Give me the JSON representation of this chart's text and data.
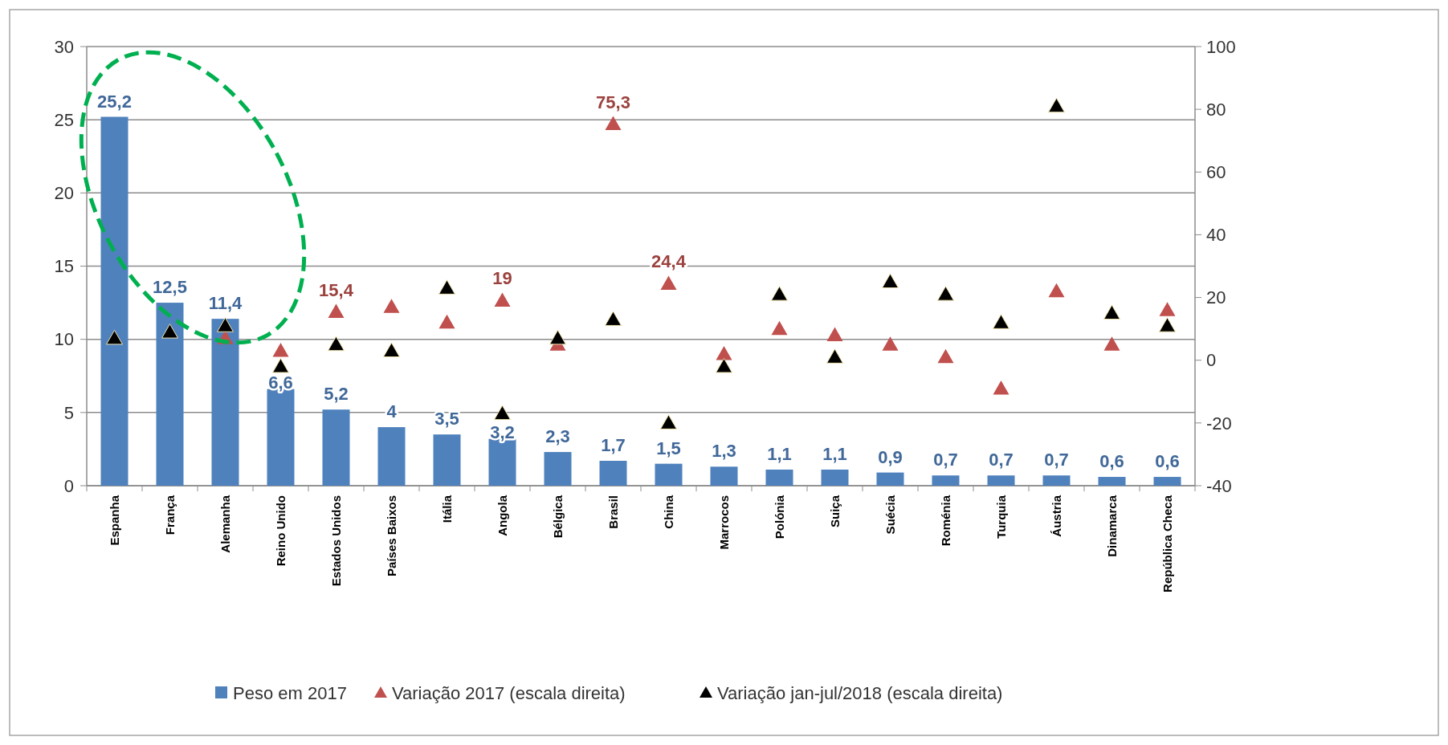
{
  "chart_data": {
    "type": "bar",
    "categories": [
      "Espanha",
      "França",
      "Alemanha",
      "Reino Unido",
      "Estados Unidos",
      "Países Baixos",
      "Itália",
      "Angola",
      "Bélgica",
      "Brasil",
      "China",
      "Marrocos",
      "Polónia",
      "Suiça",
      "Suécia",
      "Roménia",
      "Turquia",
      "Áustria",
      "Dinamarca",
      "República Checa"
    ],
    "series": [
      {
        "name": "Peso em 2017",
        "color": "#4f81bd",
        "values": [
          25.2,
          12.5,
          11.4,
          6.6,
          5.2,
          4,
          3.5,
          3.2,
          2.3,
          1.7,
          1.5,
          1.3,
          1.1,
          1.1,
          0.9,
          0.7,
          0.7,
          0.7,
          0.6,
          0.6
        ],
        "value_labels": [
          "25,2",
          "12,5",
          "11,4",
          "6,6",
          "5,2",
          "4",
          "3,5",
          "3,2",
          "2,3",
          "1,7",
          "1,5",
          "1,3",
          "1,1",
          "1,1",
          "0,9",
          "0,7",
          "0,7",
          "0,7",
          "0,6",
          "0,6"
        ]
      },
      {
        "name": "Variação 2017 (escala direita)",
        "type": "scatter",
        "axis": "y2",
        "marker": "triangle",
        "color": "#c0504d",
        "values": [
          null,
          null,
          7,
          3,
          15.4,
          17,
          12,
          19,
          5,
          75.3,
          24.4,
          2,
          10,
          8,
          5,
          1,
          -9,
          22,
          5,
          16
        ],
        "value_labels": [
          null,
          null,
          null,
          null,
          "15,4",
          null,
          null,
          "19",
          null,
          "75,3",
          "24,4",
          null,
          null,
          null,
          null,
          null,
          null,
          null,
          null,
          null
        ]
      },
      {
        "name": "Variação jan-jul/2018 (escala direita)",
        "type": "scatter",
        "axis": "y2",
        "marker": "triangle",
        "color": "#000000",
        "values": [
          7,
          9,
          11,
          -2,
          5,
          3,
          23,
          -17,
          7,
          13,
          -20,
          -2,
          21,
          1,
          25,
          21,
          12,
          81,
          15,
          11
        ]
      }
    ],
    "ylim": [
      0,
      30
    ],
    "yticks": [
      0,
      5,
      10,
      15,
      20,
      25,
      30
    ],
    "y2lim": [
      -40,
      100
    ],
    "y2ticks": [
      -40,
      -20,
      0,
      20,
      40,
      60,
      80,
      100
    ],
    "grid": "y",
    "legend": "bottom"
  }
}
